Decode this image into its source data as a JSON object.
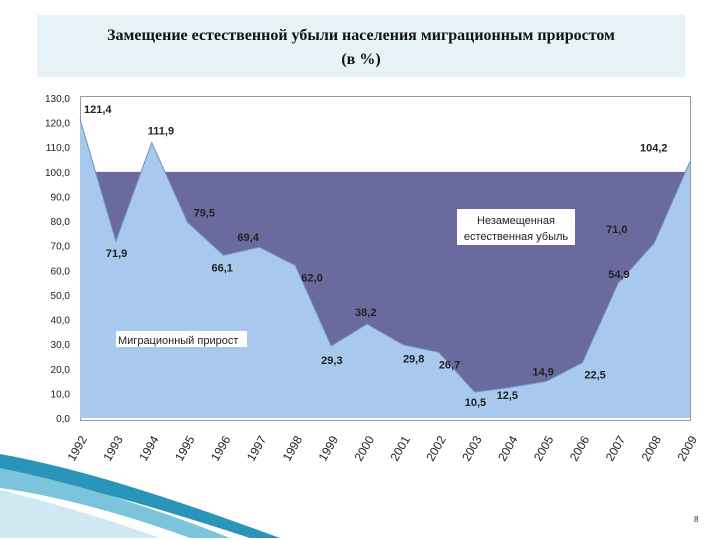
{
  "title": {
    "line1": "Замещение естественной убыли населения миграционным приростом",
    "line2": "(в  %)"
  },
  "chart_data": {
    "type": "area",
    "categories": [
      "1992",
      "1993",
      "1994",
      "1995",
      "1996",
      "1997",
      "1998",
      "1999",
      "2000",
      "2001",
      "2002",
      "2003",
      "2004",
      "2005",
      "2006",
      "2007",
      "2008",
      "2009"
    ],
    "series": [
      {
        "values": [
          121.4,
          71.9,
          111.9,
          79.5,
          66.1,
          69.4,
          62.0,
          29.3,
          38.2,
          29.8,
          26.7,
          10.5,
          12.5,
          14.9,
          22.5,
          54.9,
          71.0,
          104.2
        ],
        "labels": [
          "121,4",
          "71,9",
          "111,9",
          "79,5",
          "66,1",
          "69,4",
          "62,0",
          "29,3",
          "38,2",
          "29,8",
          "26,7",
          "10,5",
          "12,5",
          "14,9",
          "22,5",
          "54,9",
          "71,0",
          "104,2"
        ]
      }
    ],
    "reference_line": 100,
    "ylim": [
      0,
      130
    ],
    "yticks": [
      "0,0",
      "10,0",
      "20,0",
      "30,0",
      "40,0",
      "50,0",
      "60,0",
      "70,0",
      "80,0",
      "90,0",
      "100,0",
      "110,0",
      "120,0",
      "130,0"
    ],
    "annotations": {
      "migration": "Миграционный прирост",
      "unreplaced_line1": "Незамещенная",
      "unreplaced_line2": "естественная убыль"
    },
    "colors": {
      "migration_fill": "#a8c8ee",
      "unreplaced_fill": "#6a6a9e",
      "outline": "#7090c0"
    },
    "grid": false,
    "legend": "none"
  },
  "page_number": "8"
}
